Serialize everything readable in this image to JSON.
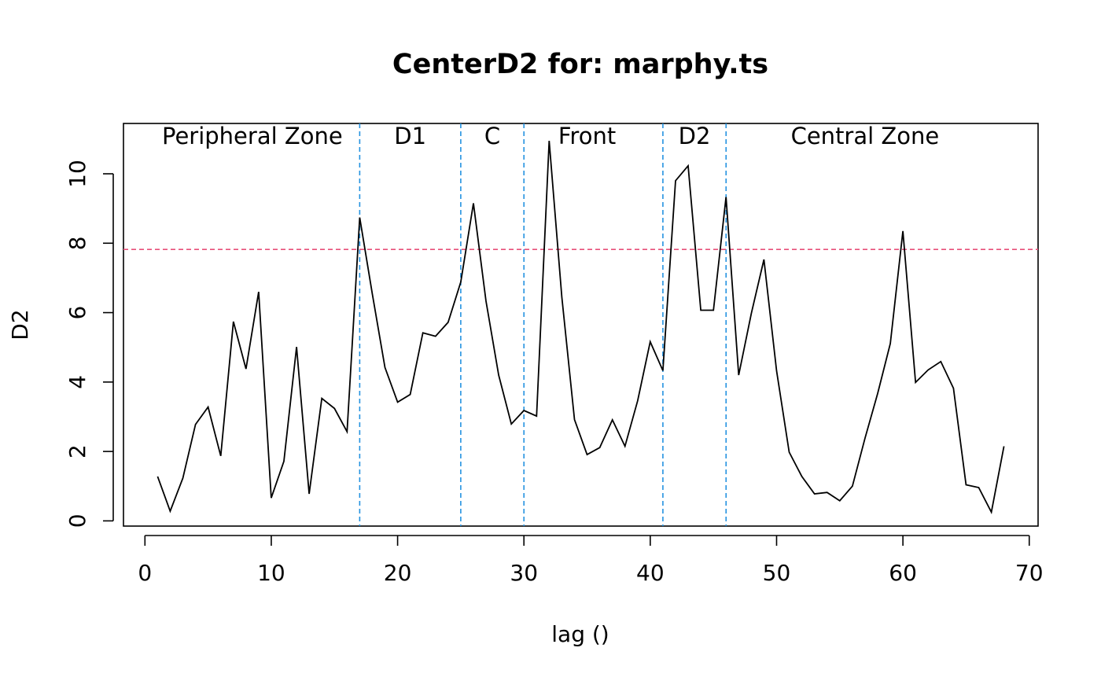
{
  "chart_data": {
    "type": "line",
    "title": "CenterD2 for: marphy.ts",
    "xlabel": "lag ()",
    "ylabel": "D2",
    "xlim": [
      -1.7,
      70.7
    ],
    "ylim": [
      -0.15,
      11.45
    ],
    "x_ticks": [
      0,
      10,
      20,
      30,
      40,
      50,
      60,
      70
    ],
    "y_ticks": [
      0,
      2,
      4,
      6,
      8,
      10
    ],
    "grid": false,
    "box": true,
    "series": [
      {
        "color": "#000000",
        "x": [
          1,
          2,
          3,
          4,
          5,
          6,
          7,
          8,
          9,
          10,
          11,
          12,
          13,
          14,
          15,
          16,
          17,
          18,
          19,
          20,
          21,
          22,
          23,
          24,
          25,
          26,
          27,
          28,
          29,
          30,
          31,
          32,
          33,
          34,
          35,
          36,
          37,
          38,
          39,
          40,
          41,
          42,
          43,
          44,
          45,
          46,
          47,
          48,
          49,
          50,
          51,
          52,
          53,
          54,
          55,
          56,
          57,
          58,
          59,
          60,
          61,
          62,
          63,
          64,
          65,
          66,
          67,
          68
        ],
        "values": [
          1.28,
          0.28,
          1.23,
          2.78,
          3.28,
          1.87,
          5.74,
          4.38,
          6.6,
          0.66,
          1.72,
          5.01,
          0.78,
          3.53,
          3.24,
          2.57,
          8.74,
          6.53,
          4.42,
          3.42,
          3.64,
          5.42,
          5.32,
          5.72,
          6.88,
          9.15,
          6.33,
          4.2,
          2.79,
          3.18,
          3.02,
          10.95,
          6.45,
          2.92,
          1.91,
          2.11,
          2.91,
          2.15,
          3.46,
          5.16,
          4.33,
          9.8,
          10.23,
          6.07,
          6.07,
          9.33,
          4.2,
          5.98,
          7.53,
          4.32,
          1.98,
          1.28,
          0.78,
          0.82,
          0.58,
          1.0,
          2.38,
          3.67,
          5.11,
          8.35,
          3.99,
          4.35,
          4.59,
          3.82,
          1.04,
          0.96,
          0.25,
          2.15
        ]
      }
    ],
    "threshold": {
      "value": 7.82,
      "color": "#E8507A",
      "style": "dashed"
    },
    "zone_boundaries": [
      {
        "x": 17,
        "color": "#2492E0",
        "style": "dashed"
      },
      {
        "x": 25,
        "color": "#2492E0",
        "style": "dashed"
      },
      {
        "x": 30,
        "color": "#2492E0",
        "style": "dashed"
      },
      {
        "x": 41,
        "color": "#2492E0",
        "style": "dashed"
      },
      {
        "x": 46,
        "color": "#2492E0",
        "style": "dashed"
      }
    ],
    "zones": [
      {
        "label": "Peripheral Zone",
        "x_center": 8.5
      },
      {
        "label": "D1",
        "x_center": 21
      },
      {
        "label": "C",
        "x_center": 27.5
      },
      {
        "label": "Front",
        "x_center": 35
      },
      {
        "label": "D2",
        "x_center": 43.5
      },
      {
        "label": "Central Zone",
        "x_center": 57
      }
    ]
  }
}
